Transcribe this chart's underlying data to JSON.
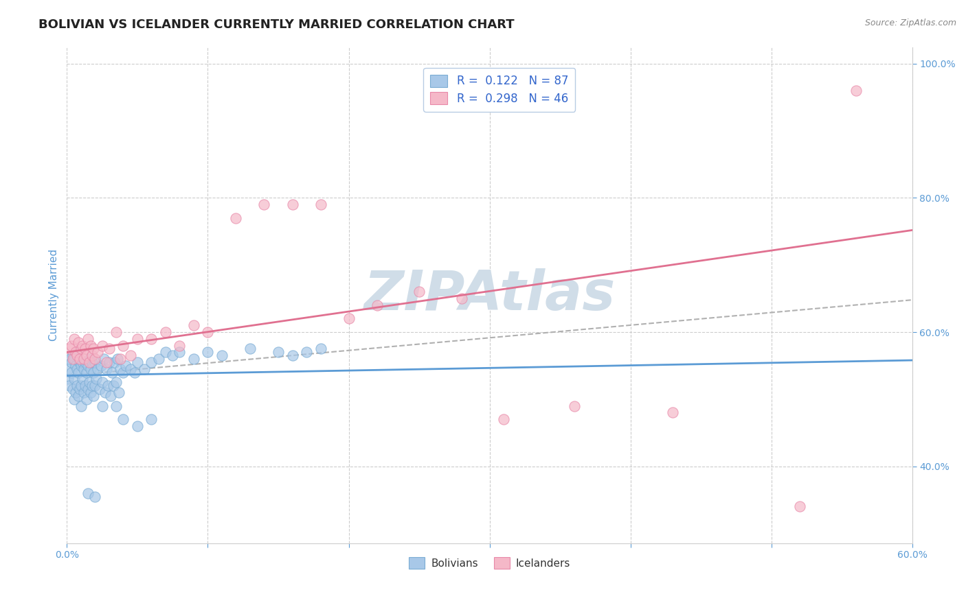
{
  "title": "BOLIVIAN VS ICELANDER CURRENTLY MARRIED CORRELATION CHART",
  "source_text": "Source: ZipAtlas.com",
  "ylabel_text": "Currently Married",
  "xlim": [
    0.0,
    0.6
  ],
  "ylim": [
    0.285,
    1.025
  ],
  "x_ticks": [
    0.0,
    0.1,
    0.2,
    0.3,
    0.4,
    0.5,
    0.6
  ],
  "y_ticks": [
    0.4,
    0.6,
    0.8,
    1.0
  ],
  "bolivian_color": "#a8c8e8",
  "bolivian_edge_color": "#7aacd4",
  "icelander_color": "#f5b8c8",
  "icelander_edge_color": "#e888a8",
  "trend_blue_color": "#5b9bd5",
  "trend_pink_color": "#e07090",
  "trend_dashed_color": "#b0b0b0",
  "watermark_text": "ZIPAtlas",
  "watermark_color": "#d0dde8",
  "R_bolivian": 0.122,
  "N_bolivian": 87,
  "R_icelander": 0.298,
  "N_icelander": 46,
  "trend_blue_x0": 0.0,
  "trend_blue_y0": 0.535,
  "trend_blue_x1": 0.6,
  "trend_blue_y1": 0.558,
  "trend_pink_x0": 0.0,
  "trend_pink_y0": 0.57,
  "trend_pink_x1": 0.6,
  "trend_pink_y1": 0.752,
  "trend_dashed_x0": 0.0,
  "trend_dashed_y0": 0.535,
  "trend_dashed_x1": 0.6,
  "trend_dashed_y1": 0.648,
  "bolivian_x": [
    0.001,
    0.001,
    0.002,
    0.002,
    0.003,
    0.003,
    0.004,
    0.004,
    0.005,
    0.005,
    0.005,
    0.006,
    0.006,
    0.007,
    0.007,
    0.007,
    0.008,
    0.008,
    0.009,
    0.009,
    0.01,
    0.01,
    0.01,
    0.011,
    0.011,
    0.012,
    0.012,
    0.013,
    0.013,
    0.014,
    0.014,
    0.015,
    0.015,
    0.016,
    0.016,
    0.017,
    0.017,
    0.018,
    0.018,
    0.019,
    0.019,
    0.02,
    0.02,
    0.021,
    0.022,
    0.023,
    0.024,
    0.025,
    0.026,
    0.027,
    0.028,
    0.029,
    0.03,
    0.031,
    0.032,
    0.033,
    0.034,
    0.035,
    0.036,
    0.037,
    0.038,
    0.04,
    0.042,
    0.045,
    0.048,
    0.05,
    0.055,
    0.06,
    0.065,
    0.07,
    0.075,
    0.08,
    0.09,
    0.1,
    0.11,
    0.13,
    0.15,
    0.16,
    0.17,
    0.18,
    0.025,
    0.035,
    0.04,
    0.05,
    0.06,
    0.015,
    0.02
  ],
  "bolivian_y": [
    0.53,
    0.545,
    0.52,
    0.56,
    0.54,
    0.555,
    0.515,
    0.565,
    0.5,
    0.53,
    0.56,
    0.51,
    0.55,
    0.52,
    0.545,
    0.57,
    0.505,
    0.54,
    0.515,
    0.555,
    0.52,
    0.55,
    0.49,
    0.53,
    0.555,
    0.51,
    0.545,
    0.52,
    0.555,
    0.5,
    0.54,
    0.515,
    0.55,
    0.525,
    0.56,
    0.51,
    0.545,
    0.52,
    0.555,
    0.505,
    0.54,
    0.52,
    0.555,
    0.53,
    0.545,
    0.515,
    0.55,
    0.525,
    0.56,
    0.51,
    0.545,
    0.52,
    0.555,
    0.505,
    0.54,
    0.52,
    0.555,
    0.525,
    0.56,
    0.51,
    0.545,
    0.54,
    0.55,
    0.545,
    0.54,
    0.555,
    0.545,
    0.555,
    0.56,
    0.57,
    0.565,
    0.57,
    0.56,
    0.57,
    0.565,
    0.575,
    0.57,
    0.565,
    0.57,
    0.575,
    0.49,
    0.49,
    0.47,
    0.46,
    0.47,
    0.36,
    0.355
  ],
  "icelander_x": [
    0.002,
    0.003,
    0.004,
    0.005,
    0.006,
    0.007,
    0.008,
    0.009,
    0.01,
    0.011,
    0.012,
    0.013,
    0.014,
    0.015,
    0.016,
    0.017,
    0.018,
    0.019,
    0.02,
    0.022,
    0.025,
    0.028,
    0.03,
    0.035,
    0.038,
    0.04,
    0.045,
    0.05,
    0.06,
    0.07,
    0.08,
    0.09,
    0.1,
    0.12,
    0.14,
    0.16,
    0.18,
    0.2,
    0.22,
    0.25,
    0.28,
    0.31,
    0.36,
    0.43,
    0.52,
    0.56
  ],
  "icelander_y": [
    0.575,
    0.58,
    0.56,
    0.59,
    0.57,
    0.565,
    0.585,
    0.56,
    0.575,
    0.58,
    0.56,
    0.575,
    0.565,
    0.59,
    0.555,
    0.58,
    0.565,
    0.575,
    0.56,
    0.57,
    0.58,
    0.555,
    0.575,
    0.6,
    0.56,
    0.58,
    0.565,
    0.59,
    0.59,
    0.6,
    0.58,
    0.61,
    0.6,
    0.77,
    0.79,
    0.79,
    0.79,
    0.62,
    0.64,
    0.66,
    0.65,
    0.47,
    0.49,
    0.48,
    0.34,
    0.96
  ],
  "background_color": "#ffffff",
  "grid_color": "#cccccc",
  "tick_color": "#5b9bd5",
  "title_color": "#222222",
  "title_fontsize": 13,
  "axis_label_fontsize": 11,
  "tick_fontsize": 10,
  "legend_R_color": "#3366cc",
  "legend_N_color": "#cc3333",
  "legend_border_color": "#b8cce4"
}
